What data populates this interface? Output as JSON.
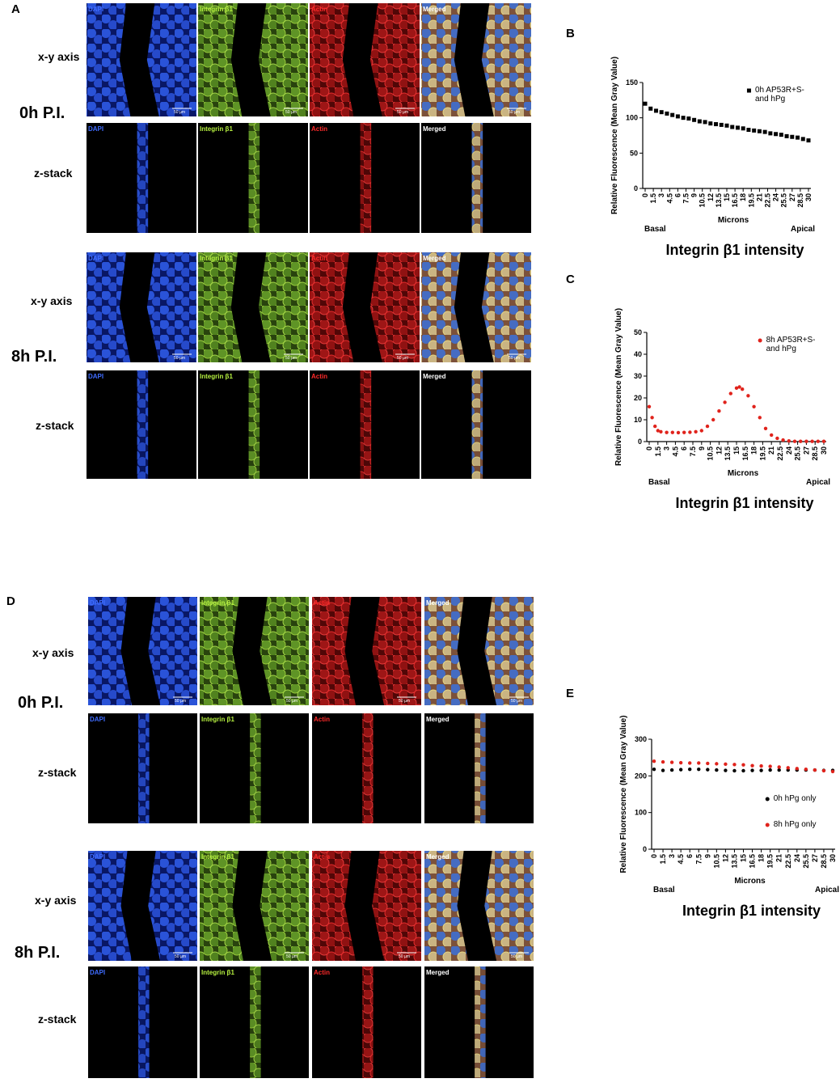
{
  "figure": {
    "panels": [
      {
        "letter": "A",
        "blocks": [
          {
            "time": "0h P.I.",
            "rows": [
              {
                "label": "x-y axis",
                "images": [
                  {
                    "channel": "DAPI",
                    "scale": "50 µm"
                  },
                  {
                    "channel": "Integrin β1",
                    "scale": "50 µm"
                  },
                  {
                    "channel": "Actin",
                    "scale": "50 µm"
                  },
                  {
                    "channel": "Merged",
                    "scale": "50 µm"
                  }
                ]
              },
              {
                "label": "z-stack",
                "images": [
                  {
                    "channel": "DAPI"
                  },
                  {
                    "channel": "Integrin β1"
                  },
                  {
                    "channel": "Actin"
                  },
                  {
                    "channel": "Merged"
                  }
                ]
              }
            ]
          },
          {
            "time": "8h P.I.",
            "rows": [
              {
                "label": "x-y axis",
                "images": [
                  {
                    "channel": "DAPI",
                    "scale": "50 µm"
                  },
                  {
                    "channel": "Integrin β1",
                    "scale": "50 µm"
                  },
                  {
                    "channel": "Actin",
                    "scale": "50 µm"
                  },
                  {
                    "channel": "Merged",
                    "scale": "50 µm"
                  }
                ]
              },
              {
                "label": "z-stack",
                "images": [
                  {
                    "channel": "DAPI"
                  },
                  {
                    "channel": "Integrin β1"
                  },
                  {
                    "channel": "Actin"
                  },
                  {
                    "channel": "Merged"
                  }
                ]
              }
            ]
          }
        ]
      },
      {
        "letter": "D",
        "blocks": [
          {
            "time": "0h P.I.",
            "rows": [
              {
                "label": "x-y axis",
                "images": [
                  {
                    "channel": "DAPI",
                    "scale": "50 µm"
                  },
                  {
                    "channel": "Integrin β1",
                    "scale": "50 µm"
                  },
                  {
                    "channel": "Actin",
                    "scale": "50 µm"
                  },
                  {
                    "channel": "Merged",
                    "scale": "50 µm"
                  }
                ]
              },
              {
                "label": "z-stack",
                "images": [
                  {
                    "channel": "DAPI"
                  },
                  {
                    "channel": "Integrin β1"
                  },
                  {
                    "channel": "Actin"
                  },
                  {
                    "channel": "Merged"
                  }
                ]
              }
            ]
          },
          {
            "time": "8h P.I.",
            "rows": [
              {
                "label": "x-y axis",
                "images": [
                  {
                    "channel": "DAPI",
                    "scale": "50 µm"
                  },
                  {
                    "channel": "Integrin β1",
                    "scale": "50 µm"
                  },
                  {
                    "channel": "Actin",
                    "scale": "50 µm"
                  },
                  {
                    "channel": "Merged",
                    "scale": "50 µm"
                  }
                ]
              },
              {
                "label": "z-stack",
                "images": [
                  {
                    "channel": "DAPI"
                  },
                  {
                    "channel": "Integrin β1"
                  },
                  {
                    "channel": "Actin"
                  },
                  {
                    "channel": "Merged"
                  }
                ]
              }
            ]
          }
        ]
      }
    ]
  },
  "chart_data": [
    {
      "type": "scatter",
      "letter": "B",
      "title": "Integrin β1 intensity",
      "x_label": "Microns",
      "y_label": "Relative Fluorescence (Mean Gray Value)",
      "x_start_label": "Basal",
      "x_end_label": "Apical",
      "xlim": [
        0,
        30
      ],
      "xticks": [
        0,
        1.5,
        3,
        4.5,
        6,
        7.5,
        9,
        10.5,
        12,
        13.5,
        15,
        16.5,
        18,
        19.5,
        21,
        22.5,
        24,
        25.5,
        27,
        28.5,
        30
      ],
      "ylim": [
        0,
        150
      ],
      "yticks": [
        0,
        50,
        100,
        150
      ],
      "legend": "upper right",
      "x": [
        0,
        1,
        2,
        3,
        4,
        5,
        6,
        7,
        8,
        9,
        10,
        11,
        12,
        13,
        14,
        15,
        16,
        17,
        18,
        19,
        20,
        21,
        22,
        23,
        24,
        25,
        26,
        27,
        28,
        29,
        30
      ],
      "series": [
        {
          "name": "0h AP53R+S- and hPg",
          "color": "#000000",
          "marker": "square",
          "values": [
            120,
            113,
            110,
            108,
            106,
            104,
            102,
            100,
            99,
            97,
            95,
            94,
            92,
            91,
            90,
            89,
            87,
            86,
            85,
            83,
            82,
            81,
            80,
            78,
            77,
            76,
            74,
            73,
            72,
            70,
            68
          ]
        }
      ]
    },
    {
      "type": "scatter",
      "letter": "C",
      "title": "Integrin β1 intensity",
      "x_label": "Microns",
      "y_label": "Relative Fluorescence (Mean Gray Value)",
      "x_start_label": "Basal",
      "x_end_label": "Apical",
      "xlim": [
        0,
        30
      ],
      "xticks": [
        0,
        1.5,
        3,
        4.5,
        6,
        7.5,
        9,
        10.5,
        12,
        13.5,
        15,
        16.5,
        18,
        19.5,
        21,
        22.5,
        24,
        25.5,
        27,
        28.5,
        30
      ],
      "ylim": [
        0,
        50
      ],
      "yticks": [
        0,
        10,
        20,
        30,
        40,
        50
      ],
      "legend": "upper right",
      "x": [
        0,
        0.5,
        1,
        1.5,
        2,
        3,
        4,
        5,
        6,
        7,
        8,
        9,
        10,
        11,
        12,
        13,
        14,
        15,
        15.5,
        16,
        17,
        18,
        19,
        20,
        21,
        22,
        23,
        24,
        25,
        26,
        27,
        28,
        29,
        30
      ],
      "series": [
        {
          "name": "8h AP53R+S- and hPg",
          "color": "#e0231c",
          "marker": "circle",
          "values": [
            16,
            11,
            7,
            5,
            4.5,
            4.2,
            4.2,
            4.1,
            4.2,
            4.3,
            4.5,
            5,
            7,
            10,
            14,
            18,
            22,
            24.5,
            25,
            24,
            21,
            16,
            11,
            6,
            3,
            1.5,
            0.7,
            0.3,
            0.1,
            0.1,
            0.1,
            0.1,
            0.1,
            0.1
          ]
        }
      ]
    },
    {
      "type": "scatter",
      "letter": "E",
      "title": "Integrin β1 intensity",
      "x_label": "Microns",
      "y_label": "Relative Fluorescence (Mean Gray Value)",
      "x_start_label": "Basal",
      "x_end_label": "Apical",
      "xlim": [
        0,
        30
      ],
      "xticks": [
        0,
        1.5,
        3,
        4.5,
        6,
        7.5,
        9,
        10.5,
        12,
        13.5,
        15,
        16.5,
        18,
        19.5,
        21,
        22.5,
        24,
        25.5,
        27,
        28.5,
        30
      ],
      "ylim": [
        0,
        300
      ],
      "yticks": [
        0,
        100,
        200,
        300
      ],
      "legend": "lower right",
      "x": [
        0,
        1.5,
        3,
        4.5,
        6,
        7.5,
        9,
        10.5,
        12,
        13.5,
        15,
        16.5,
        18,
        19.5,
        21,
        22.5,
        24,
        25.5,
        27,
        28.5,
        30
      ],
      "series": [
        {
          "name": "0h hPg only",
          "color": "#000000",
          "marker": "circle",
          "values": [
            218,
            215,
            216,
            217,
            218,
            218,
            217,
            216,
            215,
            214,
            214,
            215,
            215,
            216,
            216,
            216,
            216,
            216,
            216,
            215,
            215
          ]
        },
        {
          "name": "8h hPg only",
          "color": "#e0231c",
          "marker": "circle",
          "values": [
            240,
            238,
            237,
            236,
            235,
            235,
            234,
            233,
            232,
            231,
            230,
            228,
            227,
            226,
            224,
            222,
            220,
            218,
            216,
            214,
            212
          ]
        }
      ]
    }
  ]
}
